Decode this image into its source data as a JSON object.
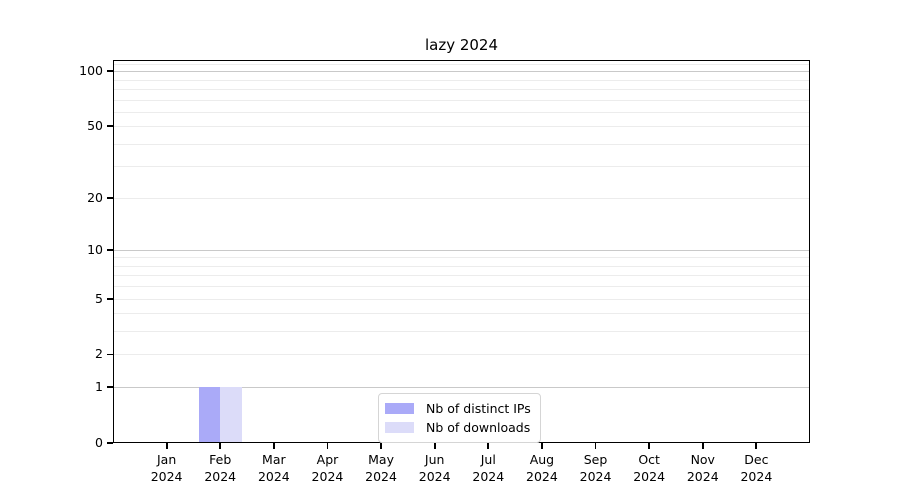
{
  "chart_data": {
    "type": "bar",
    "title": "lazy 2024",
    "categories": [
      "Jan 2024",
      "Feb 2024",
      "Mar 2024",
      "Apr 2024",
      "May 2024",
      "Jun 2024",
      "Jul 2024",
      "Aug 2024",
      "Sep 2024",
      "Oct 2024",
      "Nov 2024",
      "Dec 2024"
    ],
    "series": [
      {
        "name": "Nb of distinct IPs",
        "color": "#aaaaf8",
        "values": [
          0,
          1,
          0,
          0,
          0,
          0,
          0,
          0,
          0,
          0,
          0,
          0
        ]
      },
      {
        "name": "Nb of downloads",
        "color": "#dcdcf9",
        "values": [
          0,
          1,
          0,
          0,
          0,
          0,
          0,
          0,
          0,
          0,
          0,
          0
        ]
      }
    ],
    "xlabel": "",
    "ylabel": "",
    "yscale": "log1p",
    "yticks": [
      0,
      1,
      2,
      5,
      10,
      20,
      50,
      100
    ],
    "ylim": [
      0,
      115
    ],
    "grid": true,
    "legend_position": "inside-lower-center",
    "colors": {
      "axis": "#000000",
      "major_grid": "#c9c9c9",
      "minor_grid": "#ececec",
      "legend_border": "#d5d5d5",
      "background": "#ffffff"
    }
  }
}
